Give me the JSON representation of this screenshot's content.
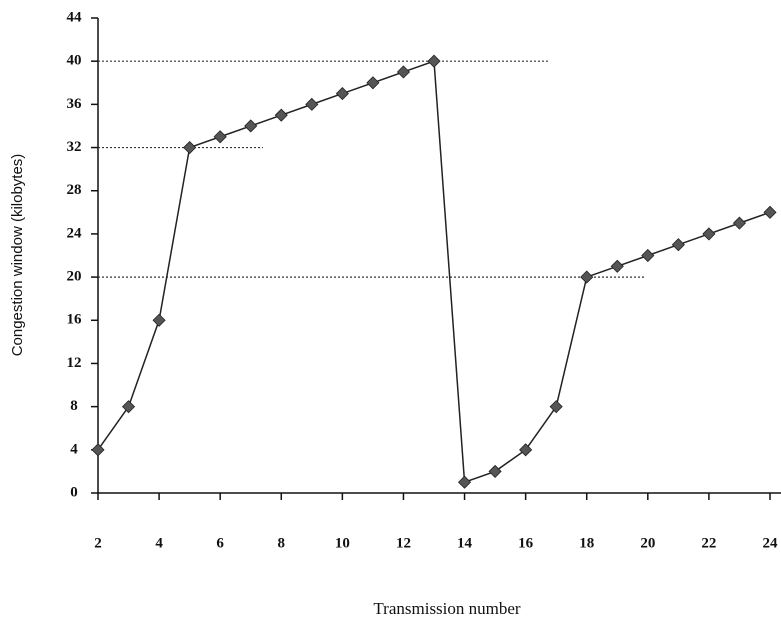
{
  "chart_data": {
    "type": "line",
    "x_label": "Transmission number",
    "y_label": "Congestion window (kilobytes)",
    "x": [
      2,
      3,
      4,
      5,
      6,
      7,
      8,
      9,
      10,
      11,
      12,
      13,
      14,
      15,
      16,
      17,
      18,
      19,
      20,
      21,
      22,
      23,
      24
    ],
    "series": [
      {
        "color": "#222222",
        "marker_color": "#555555",
        "values": [
          4,
          8,
          16,
          32,
          33,
          34,
          35,
          36,
          37,
          38,
          39,
          40,
          1,
          2,
          4,
          8,
          20,
          21,
          22,
          23,
          24,
          25,
          26
        ]
      }
    ],
    "reference_lines": [
      {
        "y": 40,
        "x_end": 16.8
      },
      {
        "y": 32,
        "x_end": 7.4
      },
      {
        "y": 20,
        "x_end": 19.9
      }
    ],
    "xlim": [
      2,
      24.36
    ],
    "ylim": [
      0,
      44
    ],
    "xticks": [
      2,
      4,
      6,
      8,
      10,
      12,
      14,
      16,
      18,
      20,
      22,
      24
    ],
    "yticks": [
      0,
      4,
      8,
      12,
      16,
      20,
      24,
      28,
      32,
      36,
      40,
      44
    ]
  }
}
